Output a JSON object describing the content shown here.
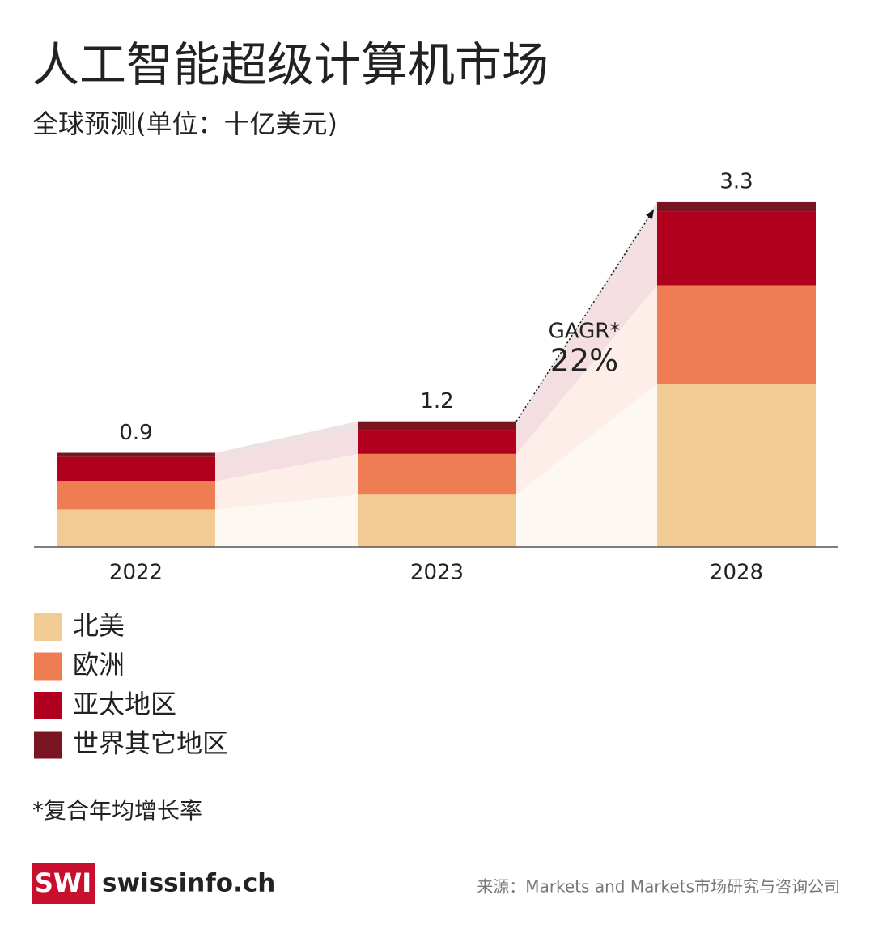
{
  "chart_data": {
    "type": "stacked_bar",
    "title": "人工智能超级计算机市场",
    "subtitle": "全球预测(单位：十亿美元)",
    "categories": [
      "2022",
      "2023",
      "2028"
    ],
    "series": [
      {
        "name": "北美",
        "color": "#f2ca94",
        "values": [
          0.36,
          0.5,
          1.56
        ]
      },
      {
        "name": "欧洲",
        "color": "#ef7d53",
        "values": [
          0.27,
          0.39,
          0.94
        ]
      },
      {
        "name": "亚太地区",
        "color": "#b0001e",
        "values": [
          0.23,
          0.23,
          0.7
        ]
      },
      {
        "name": "世界其它地区",
        "color": "#7a1420",
        "values": [
          0.04,
          0.08,
          0.1
        ]
      }
    ],
    "totals": [
      0.9,
      1.2,
      3.3
    ],
    "ylim": [
      0,
      3.4
    ],
    "annotation": {
      "label": "GAGR*",
      "value": "22%"
    },
    "footnote": "*复合年均增长率",
    "source": "来源：Markets and Markets市场研究与咨询公司",
    "logo": {
      "mark": "SWI",
      "text": "swissinfo.ch"
    }
  }
}
